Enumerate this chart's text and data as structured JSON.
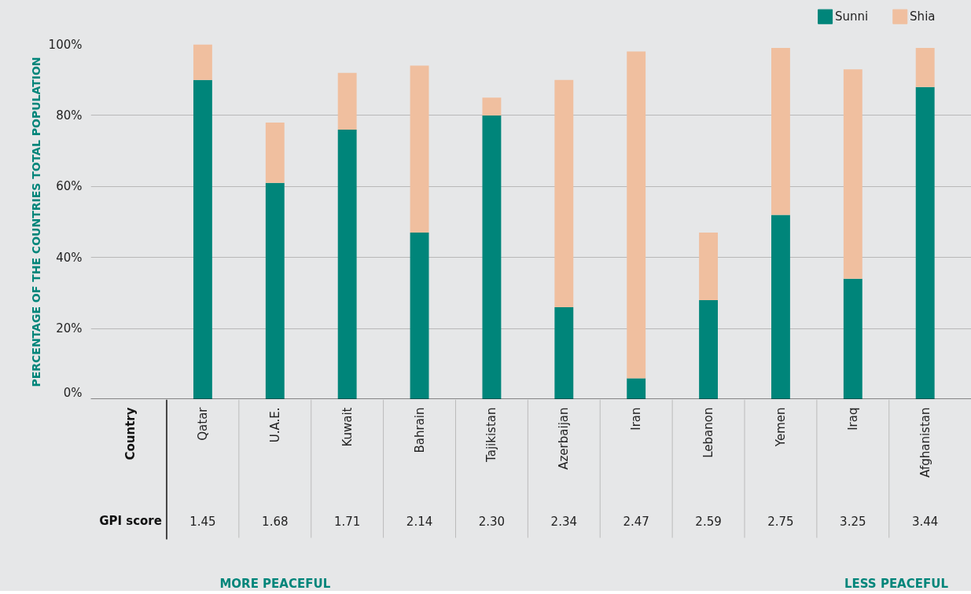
{
  "chart_data": {
    "type": "bar",
    "stacked": true,
    "ylabel": "PERCENTAGE OF THE COUNTRIES TOTAL POPULATION",
    "categories": [
      "Qatar",
      "U.A.E.",
      "Kuwait",
      "Bahrain",
      "Tajikistan",
      "Azerbaijan",
      "Iran",
      "Lebanon",
      "Yemen",
      "Iraq",
      "Afghanistan"
    ],
    "series": [
      {
        "name": "Sunni",
        "color": "#00857a",
        "values": [
          90,
          61,
          76,
          47,
          80,
          26,
          6,
          28,
          52,
          34,
          88
        ]
      },
      {
        "name": "Shia",
        "color": "#f0bf9f",
        "values": [
          10,
          17,
          16,
          47,
          5,
          64,
          92,
          19,
          47,
          59,
          11
        ]
      }
    ],
    "ylim": [
      0,
      100
    ],
    "yticks": [
      {
        "value": 0,
        "label": "0%"
      },
      {
        "value": 20,
        "label": "20%"
      },
      {
        "value": 40,
        "label": "40%"
      },
      {
        "value": 60,
        "label": "60%"
      },
      {
        "value": 80,
        "label": "80%"
      },
      {
        "value": 100,
        "label": "100%"
      }
    ],
    "grid": "y",
    "legend": "top right",
    "annotations": [
      "Country",
      "GPI score",
      "MORE PEACEFUL",
      "LESS PEACEFUL",
      "1.45",
      "1.68",
      "1.71",
      "2.14",
      "2.30",
      "2.34",
      "2.47",
      "2.59",
      "2.75",
      "3.25",
      "3.44"
    ]
  }
}
